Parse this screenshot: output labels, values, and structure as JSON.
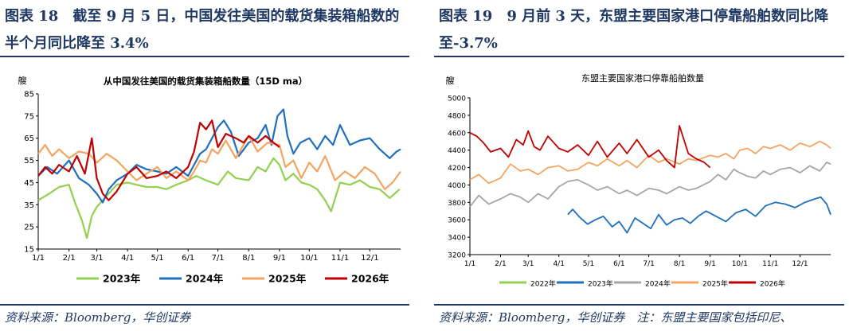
{
  "left": {
    "figure_title": "图表 18　截至 9 月 5 日，中国发往美国的载货集装箱船数的半个月同比降至 3.4%",
    "source": "资料来源：Bloomberg，华创证券"
  },
  "right": {
    "figure_title": "图表 19　9 月前 3 天，东盟主要国家港口停靠船舶数同比降至-3.7%",
    "source": "资料来源：Bloomberg，华创证券　注：东盟主要国家包括印尼、"
  },
  "chart_data": [
    {
      "type": "line",
      "title": "从中国发往美国的载货集装箱船数量（15D ma）",
      "unit_label": "艘",
      "xlabel": "",
      "ylabel": "艘",
      "ylim": [
        15,
        85
      ],
      "yticks": [
        15,
        25,
        35,
        45,
        55,
        65,
        75,
        85
      ],
      "x_ticks": [
        "1/1",
        "2/1",
        "3/1",
        "4/1",
        "5/1",
        "6/1",
        "7/1",
        "8/1",
        "9/1",
        "10/1",
        "11/1",
        "12/1"
      ],
      "x_tick_days": [
        1,
        32,
        60,
        91,
        121,
        152,
        182,
        213,
        244,
        274,
        305,
        335
      ],
      "xlim_days": [
        1,
        366
      ],
      "grid": false,
      "legend_position": "bottom",
      "series": [
        {
          "name": "2023年",
          "color": "#92d050",
          "x_days": [
            1,
            12,
            22,
            32,
            38,
            45,
            50,
            55,
            60,
            66,
            72,
            80,
            91,
            100,
            110,
            121,
            130,
            140,
            152,
            160,
            170,
            182,
            192,
            200,
            213,
            222,
            230,
            238,
            244,
            250,
            258,
            266,
            274,
            282,
            290,
            296,
            305,
            315,
            325,
            335,
            345,
            355,
            360,
            365
          ],
          "values": [
            37,
            40,
            43,
            44,
            36,
            28,
            20,
            30,
            34,
            37,
            40,
            44,
            45,
            44,
            43,
            43,
            42,
            44,
            46,
            48,
            46,
            44,
            50,
            47,
            46,
            52,
            50,
            56,
            53,
            46,
            49,
            45,
            44,
            42,
            37,
            32,
            45,
            44,
            46,
            43,
            42,
            38,
            40,
            42
          ]
        },
        {
          "name": "2024年",
          "color": "#1f6fc0",
          "x_days": [
            1,
            10,
            20,
            32,
            42,
            52,
            60,
            66,
            72,
            80,
            91,
            100,
            110,
            121,
            130,
            140,
            152,
            158,
            164,
            170,
            176,
            182,
            188,
            195,
            203,
            213,
            222,
            230,
            236,
            242,
            248,
            252,
            258,
            265,
            274,
            282,
            290,
            298,
            305,
            315,
            325,
            335,
            345,
            355,
            362,
            366
          ],
          "values": [
            48,
            52,
            49,
            55,
            47,
            44,
            40,
            36,
            42,
            46,
            49,
            53,
            51,
            50,
            49,
            52,
            48,
            53,
            58,
            60,
            65,
            70,
            73,
            68,
            57,
            63,
            65,
            71,
            62,
            75,
            78,
            66,
            58,
            63,
            65,
            60,
            66,
            62,
            71,
            62,
            64,
            65,
            60,
            56,
            59,
            60
          ]
        },
        {
          "name": "2025年",
          "color": "#f4a460",
          "x_days": [
            1,
            8,
            15,
            22,
            32,
            42,
            52,
            60,
            70,
            80,
            91,
            100,
            110,
            121,
            130,
            140,
            152,
            158,
            164,
            170,
            176,
            182,
            190,
            200,
            213,
            222,
            232,
            244,
            250,
            258,
            266,
            274,
            282,
            290,
            300,
            310,
            320,
            330,
            340,
            350,
            358,
            366
          ],
          "values": [
            58,
            62,
            57,
            60,
            56,
            59,
            58,
            54,
            58,
            55,
            50,
            46,
            49,
            52,
            47,
            50,
            46,
            50,
            55,
            54,
            60,
            58,
            64,
            56,
            66,
            59,
            63,
            62,
            52,
            55,
            47,
            54,
            50,
            57,
            46,
            50,
            47,
            52,
            49,
            42,
            45,
            50
          ]
        },
        {
          "name": "2026年",
          "color": "#c00000",
          "x_days": [
            1,
            8,
            15,
            22,
            32,
            40,
            48,
            55,
            60,
            66,
            72,
            80,
            91,
            100,
            110,
            121,
            130,
            140,
            152,
            158,
            164,
            170,
            176,
            182,
            190,
            200,
            208,
            213,
            222,
            230,
            238,
            244
          ],
          "values": [
            48,
            52,
            49,
            53,
            50,
            57,
            49,
            65,
            47,
            40,
            37,
            41,
            49,
            52,
            47,
            48,
            50,
            47,
            52,
            59,
            72,
            69,
            73,
            61,
            67,
            65,
            63,
            66,
            63,
            66,
            63,
            61
          ]
        }
      ]
    },
    {
      "type": "line",
      "title": "东盟主要国家港口停靠船舶数量",
      "unit_label": "艘",
      "xlabel": "",
      "ylabel": "艘",
      "ylim": [
        3200,
        5000
      ],
      "yticks": [
        3200,
        3400,
        3600,
        3800,
        4000,
        4200,
        4400,
        4600,
        4800,
        5000
      ],
      "x_ticks": [
        "1/1",
        "2/1",
        "3/1",
        "4/1",
        "5/1",
        "6/1",
        "7/1",
        "8/1",
        "9/1",
        "10/1",
        "11/1",
        "12/1"
      ],
      "x_tick_days": [
        1,
        32,
        60,
        91,
        121,
        152,
        182,
        213,
        244,
        274,
        305,
        335
      ],
      "xlim_days": [
        1,
        366
      ],
      "grid": false,
      "legend_position": "bottom",
      "series": [
        {
          "name": "2022年",
          "color": "#92d050",
          "x_days": [],
          "values": []
        },
        {
          "name": "2023年",
          "color": "#1f6fc0",
          "x_days": [
            100,
            105,
            112,
            120,
            128,
            136,
            145,
            152,
            160,
            168,
            176,
            184,
            192,
            200,
            208,
            216,
            224,
            232,
            240,
            250,
            260,
            270,
            280,
            290,
            300,
            310,
            320,
            330,
            340,
            350,
            356,
            362,
            366
          ],
          "values": [
            3660,
            3720,
            3630,
            3550,
            3600,
            3640,
            3520,
            3580,
            3450,
            3620,
            3560,
            3500,
            3660,
            3540,
            3600,
            3620,
            3560,
            3640,
            3700,
            3640,
            3580,
            3680,
            3720,
            3640,
            3760,
            3800,
            3780,
            3740,
            3800,
            3840,
            3860,
            3780,
            3660
          ]
        },
        {
          "name": "2024年",
          "color": "#a6a6a6",
          "x_days": [
            1,
            10,
            20,
            32,
            42,
            52,
            60,
            70,
            80,
            91,
            100,
            110,
            121,
            130,
            140,
            152,
            160,
            170,
            182,
            192,
            200,
            213,
            222,
            230,
            244,
            252,
            260,
            268,
            274,
            282,
            290,
            298,
            305,
            315,
            325,
            335,
            345,
            355,
            362,
            366
          ],
          "values": [
            3750,
            3880,
            3780,
            3840,
            3900,
            3860,
            3800,
            3900,
            3840,
            3980,
            4040,
            4060,
            4000,
            3940,
            3980,
            3900,
            3940,
            3880,
            3960,
            3940,
            3900,
            3980,
            3940,
            3960,
            4040,
            4120,
            4060,
            4180,
            4140,
            4100,
            4080,
            4160,
            4120,
            4180,
            4200,
            4140,
            4220,
            4160,
            4260,
            4240
          ]
        },
        {
          "name": "2025年",
          "color": "#f4a460",
          "x_days": [
            1,
            10,
            20,
            32,
            42,
            52,
            60,
            70,
            80,
            91,
            100,
            110,
            121,
            130,
            140,
            152,
            160,
            170,
            182,
            192,
            200,
            213,
            222,
            230,
            244,
            252,
            260,
            268,
            274,
            282,
            290,
            298,
            305,
            315,
            325,
            335,
            345,
            355,
            362,
            366
          ],
          "values": [
            4060,
            4120,
            4020,
            4080,
            4240,
            4160,
            4180,
            4120,
            4200,
            4220,
            4160,
            4180,
            4260,
            4220,
            4300,
            4220,
            4280,
            4200,
            4340,
            4260,
            4300,
            4240,
            4300,
            4280,
            4340,
            4320,
            4360,
            4300,
            4400,
            4420,
            4360,
            4440,
            4420,
            4460,
            4400,
            4480,
            4440,
            4500,
            4460,
            4420
          ]
        },
        {
          "name": "2026年",
          "color": "#c00000",
          "x_days": [
            1,
            8,
            15,
            22,
            32,
            40,
            48,
            55,
            60,
            66,
            72,
            80,
            91,
            100,
            110,
            121,
            130,
            140,
            152,
            160,
            170,
            182,
            192,
            200,
            208,
            213,
            222,
            230,
            238,
            244
          ],
          "values": [
            4600,
            4560,
            4480,
            4380,
            4420,
            4320,
            4520,
            4460,
            4620,
            4440,
            4400,
            4560,
            4420,
            4380,
            4460,
            4340,
            4500,
            4320,
            4480,
            4360,
            4520,
            4320,
            4400,
            4280,
            4200,
            4680,
            4360,
            4300,
            4260,
            4200
          ]
        }
      ]
    }
  ]
}
